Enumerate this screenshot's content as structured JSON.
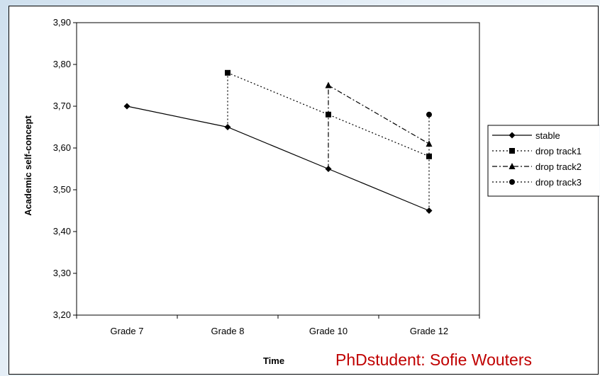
{
  "chart_data": {
    "type": "line",
    "categories": [
      "Grade 7",
      "Grade 8",
      "Grade 10",
      "Grade 12"
    ],
    "xlabel": "Time",
    "ylabel": "Academic self-concept",
    "ylim": [
      3.2,
      3.9
    ],
    "yticks": [
      "3,20",
      "3,30",
      "3,40",
      "3,50",
      "3,60",
      "3,70",
      "3,80",
      "3,90"
    ],
    "legend_position": "right",
    "series": [
      {
        "name": "stable",
        "values": [
          3.7,
          3.65,
          3.55,
          3.45
        ],
        "marker": "diamond",
        "dash": "solid"
      },
      {
        "name": "drop track1",
        "values": [
          null,
          3.78,
          3.68,
          3.58
        ],
        "marker": "square",
        "dash": "dotted",
        "drop_from": {
          "x": "Grade 8",
          "y": 3.65
        }
      },
      {
        "name": "drop track2",
        "values": [
          null,
          null,
          3.75,
          3.61
        ],
        "marker": "triangle",
        "dash": "dashdot",
        "drop_from": {
          "x": "Grade 10",
          "y": 3.55
        }
      },
      {
        "name": "drop track3",
        "values": [
          null,
          null,
          null,
          3.68
        ],
        "marker": "circle",
        "dash": "dotted",
        "drop_from": {
          "x": "Grade 12",
          "y": 3.45
        }
      }
    ]
  },
  "credit_text": "PhDstudent: Sofie Wouters"
}
